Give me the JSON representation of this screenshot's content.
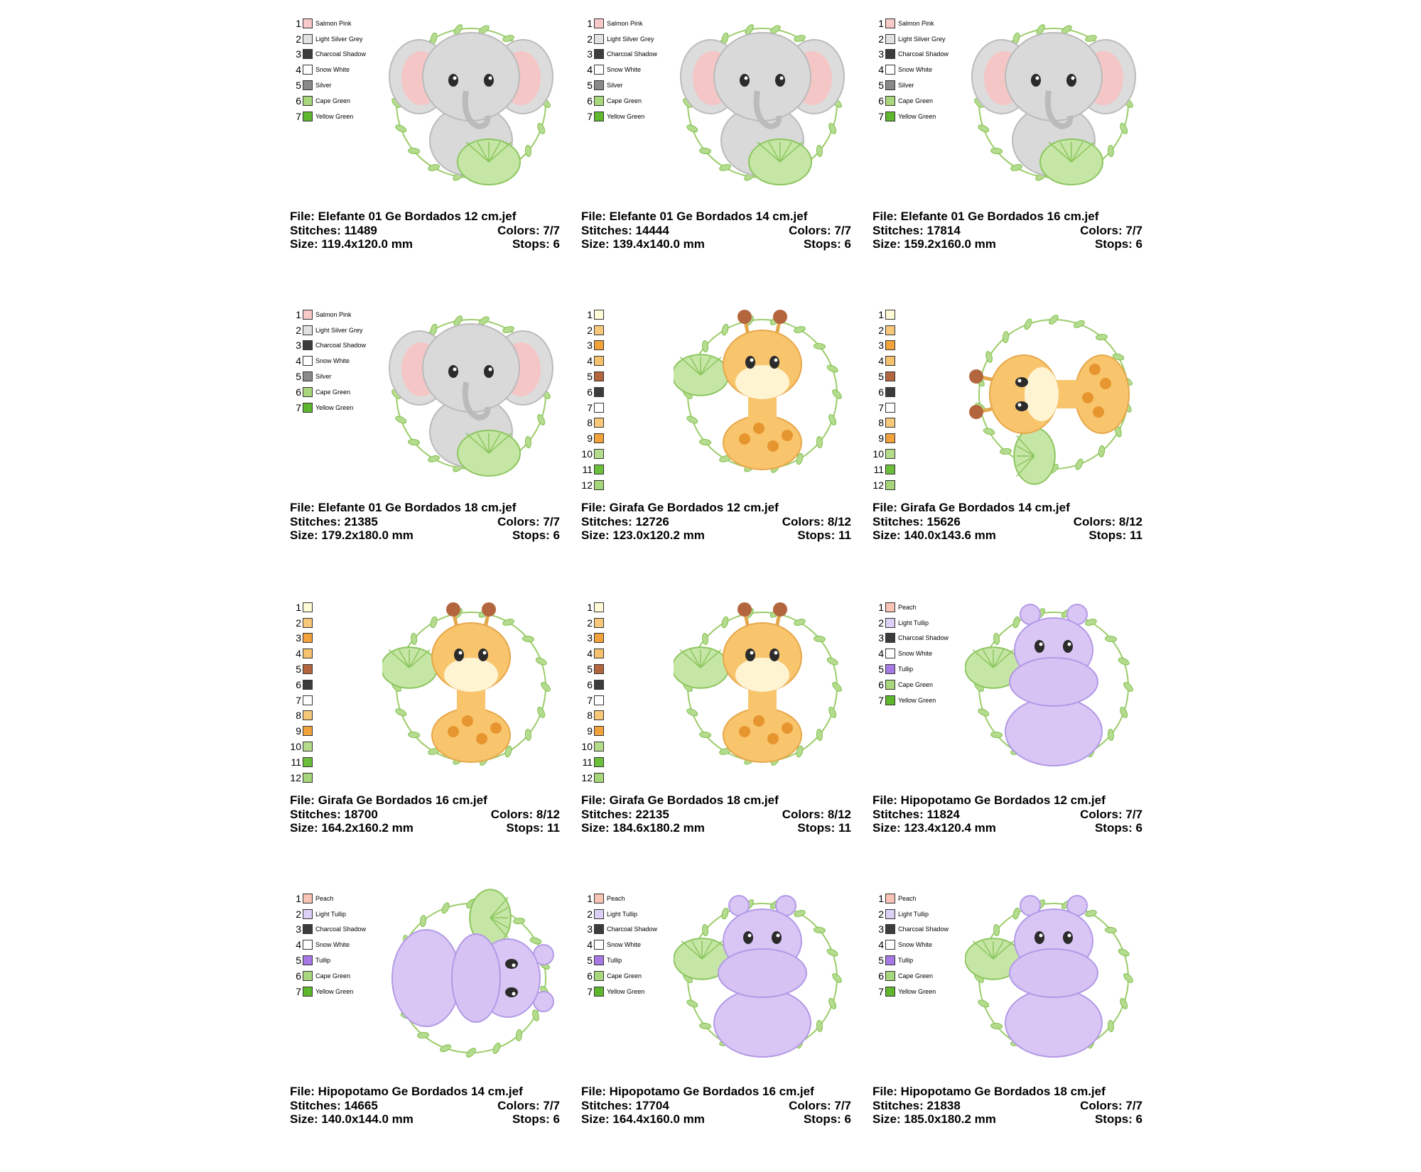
{
  "palettes": {
    "elephant": [
      {
        "num": "1",
        "name": "Salmon Pink",
        "color": "#f7c9c8"
      },
      {
        "num": "2",
        "name": "Light Silver Grey",
        "color": "#e2e2e2"
      },
      {
        "num": "3",
        "name": "Charcoal Shadow",
        "color": "#3c3c3c"
      },
      {
        "num": "4",
        "name": "Snow White",
        "color": "#ffffff"
      },
      {
        "num": "5",
        "name": "Silver",
        "color": "#8a8a8a"
      },
      {
        "num": "6",
        "name": "Cape Green",
        "color": "#a9d77c"
      },
      {
        "num": "7",
        "name": "Yellow Green",
        "color": "#5fb72e"
      }
    ],
    "giraffe": [
      {
        "num": "1",
        "name": "",
        "color": "#fffbd6"
      },
      {
        "num": "2",
        "name": "",
        "color": "#f7c87a"
      },
      {
        "num": "3",
        "name": "",
        "color": "#f2a23a"
      },
      {
        "num": "4",
        "name": "",
        "color": "#f6c26e"
      },
      {
        "num": "5",
        "name": "",
        "color": "#b3663e"
      },
      {
        "num": "6",
        "name": "",
        "color": "#3c3c3c"
      },
      {
        "num": "7",
        "name": "",
        "color": "#ffffff"
      },
      {
        "num": "8",
        "name": "",
        "color": "#f7c87a"
      },
      {
        "num": "9",
        "name": "",
        "color": "#f2a23a"
      },
      {
        "num": "10",
        "name": "",
        "color": "#b4dc8a"
      },
      {
        "num": "11",
        "name": "",
        "color": "#6cbf3a"
      },
      {
        "num": "12",
        "name": "",
        "color": "#a6d67a"
      }
    ],
    "hippo": [
      {
        "num": "1",
        "name": "Peach",
        "color": "#f9c3b5"
      },
      {
        "num": "2",
        "name": "Light Tullip",
        "color": "#ddd0f7"
      },
      {
        "num": "3",
        "name": "Charcoal Shadow",
        "color": "#3c3c3c"
      },
      {
        "num": "4",
        "name": "Snow White",
        "color": "#ffffff"
      },
      {
        "num": "5",
        "name": "Tullip",
        "color": "#a779e6"
      },
      {
        "num": "6",
        "name": "Cape Green",
        "color": "#a9d77c"
      },
      {
        "num": "7",
        "name": "Yellow Green",
        "color": "#5fb72e"
      }
    ]
  },
  "labels": {
    "file": "File: ",
    "stitches": "Stitches: ",
    "size": "Size: ",
    "colors": "Colors: ",
    "stops": "Stops: "
  },
  "designs": [
    {
      "animal": "elephant",
      "rot": 0,
      "file": "Elefante 01 Ge Bordados 12 cm.jef",
      "stitches": "11489",
      "colors": "7/7",
      "size": "119.4x120.0 mm",
      "stops": "6"
    },
    {
      "animal": "elephant",
      "rot": 0,
      "file": "Elefante 01 Ge Bordados 14 cm.jef",
      "stitches": "14444",
      "colors": "7/7",
      "size": "139.4x140.0 mm",
      "stops": "6"
    },
    {
      "animal": "elephant",
      "rot": 0,
      "file": "Elefante 01 Ge Bordados 16 cm.jef",
      "stitches": "17814",
      "colors": "7/7",
      "size": "159.2x160.0 mm",
      "stops": "6"
    },
    {
      "animal": "elephant",
      "rot": 0,
      "file": "Elefante 01 Ge Bordados 18 cm.jef",
      "stitches": "21385",
      "colors": "7/7",
      "size": "179.2x180.0 mm",
      "stops": "6"
    },
    {
      "animal": "giraffe",
      "rot": 0,
      "file": "Girafa Ge Bordados 12 cm.jef",
      "stitches": "12726",
      "colors": "8/12",
      "size": "123.0x120.2 mm",
      "stops": "11"
    },
    {
      "animal": "giraffe",
      "rot": -90,
      "file": "Girafa Ge Bordados 14 cm.jef",
      "stitches": "15626",
      "colors": "8/12",
      "size": "140.0x143.6 mm",
      "stops": "11"
    },
    {
      "animal": "giraffe",
      "rot": 0,
      "file": "Girafa Ge Bordados 16 cm.jef",
      "stitches": "18700",
      "colors": "8/12",
      "size": "164.2x160.2 mm",
      "stops": "11"
    },
    {
      "animal": "giraffe",
      "rot": 0,
      "file": "Girafa Ge Bordados 18 cm.jef",
      "stitches": "22135",
      "colors": "8/12",
      "size": "184.6x180.2 mm",
      "stops": "11"
    },
    {
      "animal": "hippo",
      "rot": 0,
      "file": "Hipopotamo Ge Bordados 12 cm.jef",
      "stitches": "11824",
      "colors": "7/7",
      "size": "123.4x120.4 mm",
      "stops": "6"
    },
    {
      "animal": "hippo",
      "rot": 90,
      "file": "Hipopotamo Ge Bordados 14 cm.jef",
      "stitches": "14665",
      "colors": "7/7",
      "size": "140.0x144.0 mm",
      "stops": "6"
    },
    {
      "animal": "hippo",
      "rot": 0,
      "file": "Hipopotamo Ge Bordados 16 cm.jef",
      "stitches": "17704",
      "colors": "7/7",
      "size": "164.4x160.0 mm",
      "stops": "6"
    },
    {
      "animal": "hippo",
      "rot": 0,
      "file": "Hipopotamo Ge Bordados 18 cm.jef",
      "stitches": "21838",
      "colors": "7/7",
      "size": "185.0x180.2 mm",
      "stops": "6"
    }
  ]
}
